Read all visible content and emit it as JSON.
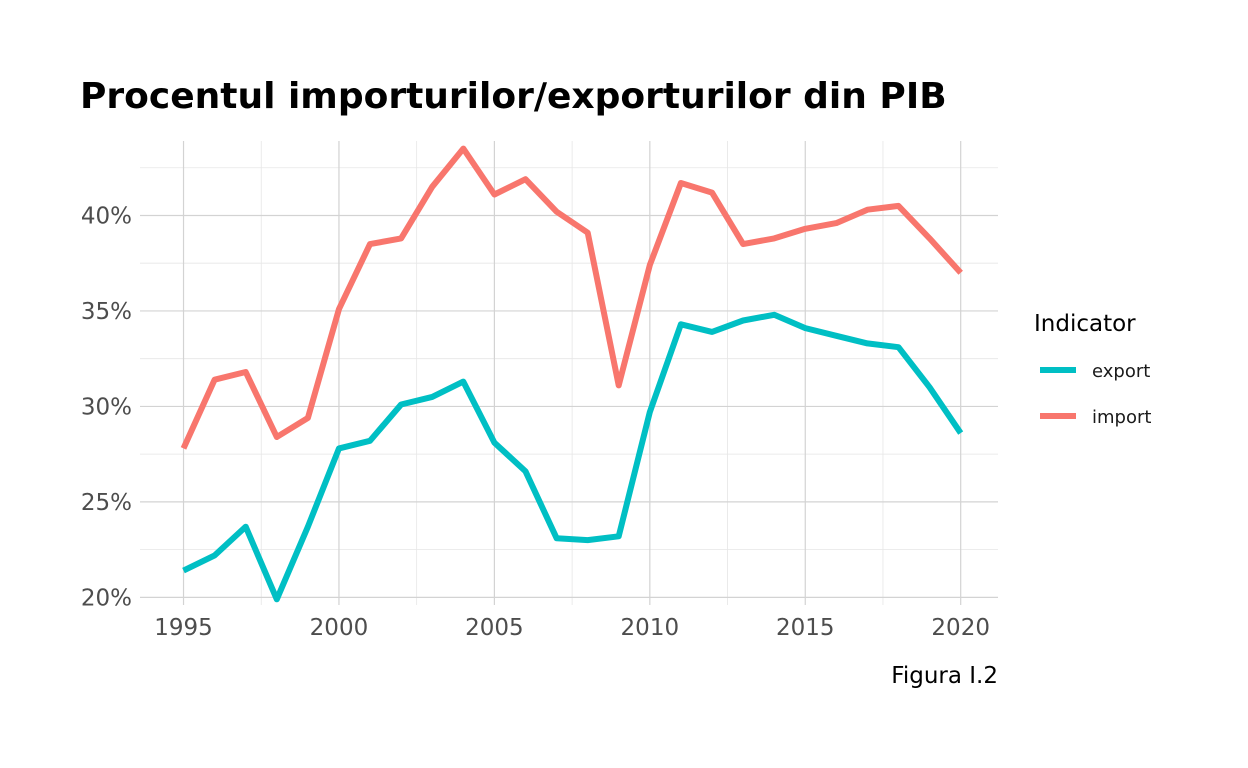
{
  "chart_data": {
    "type": "line",
    "title": "Procentul importurilor/exporturilor din PIB",
    "caption": "Figura I.2",
    "xlabel": "",
    "ylabel": "",
    "x": [
      1995,
      1996,
      1997,
      1998,
      1999,
      2000,
      2001,
      2002,
      2003,
      2004,
      2005,
      2006,
      2007,
      2008,
      2009,
      2010,
      2011,
      2012,
      2013,
      2014,
      2015,
      2016,
      2017,
      2018,
      2019,
      2020
    ],
    "xlim": [
      1993.6,
      2021.2
    ],
    "ylim": [
      19.6,
      43.9
    ],
    "x_ticks": [
      1995,
      2000,
      2005,
      2010,
      2015,
      2020
    ],
    "x_tick_labels": [
      "1995",
      "2000",
      "2005",
      "2010",
      "2015",
      "2020"
    ],
    "y_ticks": [
      20,
      25,
      30,
      35,
      40
    ],
    "y_tick_labels": [
      "20%",
      "25%",
      "30%",
      "35%",
      "40%"
    ],
    "grid": true,
    "legend": {
      "title": "Indicator",
      "position": "right"
    },
    "series": [
      {
        "name": "export",
        "color": "#00BFC4",
        "values": [
          21.4,
          22.2,
          23.7,
          19.9,
          23.7,
          27.8,
          28.2,
          30.1,
          30.5,
          31.3,
          28.1,
          26.6,
          23.1,
          23.0,
          23.2,
          29.7,
          34.3,
          33.9,
          34.5,
          34.8,
          34.1,
          33.7,
          33.3,
          33.1,
          31.0,
          28.6
        ]
      },
      {
        "name": "import",
        "color": "#F8766D",
        "values": [
          27.8,
          31.4,
          31.8,
          28.4,
          29.4,
          35.1,
          38.5,
          38.8,
          41.5,
          43.5,
          41.1,
          41.9,
          40.2,
          39.1,
          31.1,
          37.4,
          41.7,
          41.2,
          38.5,
          38.8,
          39.3,
          39.6,
          40.3,
          40.5,
          38.8,
          37.0
        ]
      }
    ]
  }
}
